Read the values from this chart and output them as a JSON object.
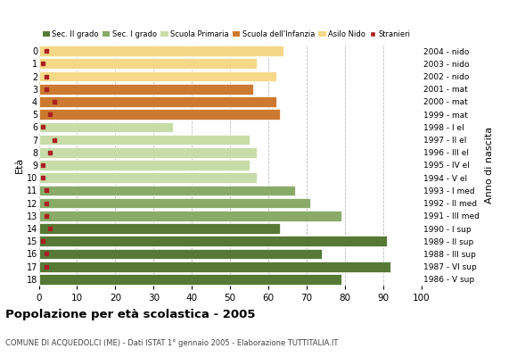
{
  "ages": [
    18,
    17,
    16,
    15,
    14,
    13,
    12,
    11,
    10,
    9,
    8,
    7,
    6,
    5,
    4,
    3,
    2,
    1,
    0
  ],
  "bar_values": [
    79,
    92,
    74,
    91,
    63,
    79,
    71,
    67,
    57,
    55,
    57,
    55,
    35,
    63,
    62,
    56,
    62,
    57,
    64
  ],
  "stranieri": [
    0,
    2,
    2,
    1,
    3,
    2,
    2,
    2,
    1,
    1,
    3,
    4,
    1,
    3,
    4,
    2,
    2,
    1,
    2
  ],
  "anno_nascita": [
    "1986 - V sup",
    "1987 - VI sup",
    "1988 - III sup",
    "1989 - II sup",
    "1990 - I sup",
    "1991 - III med",
    "1992 - II med",
    "1993 - I med",
    "1994 - V el",
    "1995 - IV el",
    "1996 - III el",
    "1997 - II el",
    "1998 - I el",
    "1999 - mat",
    "2000 - mat",
    "2001 - mat",
    "2002 - nido",
    "2003 - nido",
    "2004 - nido"
  ],
  "bar_colors": [
    "#567a36",
    "#567a36",
    "#567a36",
    "#567a36",
    "#567a36",
    "#8aaa68",
    "#8aaa68",
    "#8aaa68",
    "#c8dca8",
    "#c8dca8",
    "#c8dca8",
    "#c8dca8",
    "#c8dca8",
    "#cc7a30",
    "#cc7a30",
    "#cc7a30",
    "#f5d888",
    "#f5d888",
    "#f5d888"
  ],
  "stranieri_color": "#aa2020",
  "title": "Popolazione per età scolastica - 2005",
  "subtitle": "COMUNE DI ACQUEDOLCI (ME) - Dati ISTAT 1° gennaio 2005 - Elaborazione TUTTITALIA.IT",
  "ylabel": "Età",
  "ylabel_right": "Anno di nascita",
  "xlim": [
    0,
    100
  ],
  "xticks": [
    0,
    10,
    20,
    30,
    40,
    50,
    60,
    70,
    80,
    90,
    100
  ],
  "legend_labels": [
    "Sec. II grado",
    "Sec. I grado",
    "Scuola Primaria",
    "Scuola dell'Infanzia",
    "Asilo Nido",
    "Stranieri"
  ],
  "legend_colors": [
    "#567a36",
    "#8aaa68",
    "#c8dca8",
    "#cc7a30",
    "#f5d888",
    "#aa2020"
  ],
  "bg_color": "#ffffff",
  "grid_color": "#bbbbbb"
}
